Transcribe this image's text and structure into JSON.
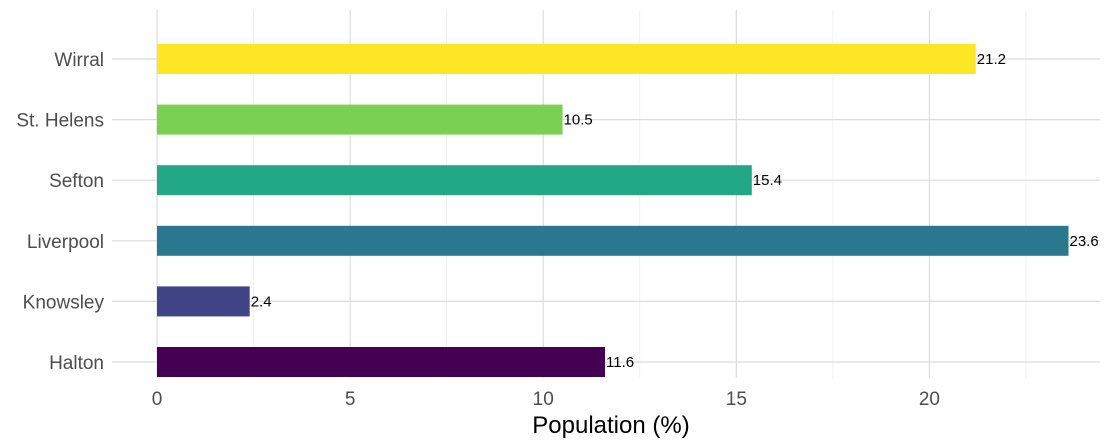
{
  "chart_data": {
    "type": "bar",
    "orientation": "horizontal",
    "categories": [
      "Halton",
      "Knowsley",
      "Liverpool",
      "Sefton",
      "St. Helens",
      "Wirral"
    ],
    "values": [
      11.6,
      2.4,
      23.6,
      15.4,
      10.5,
      21.2
    ],
    "colors": [
      "#440154",
      "#414487",
      "#2a788e",
      "#22a884",
      "#7ad151",
      "#fde725"
    ],
    "data_labels": [
      "11.6",
      "2.4",
      "23.6",
      "15.4",
      "10.5",
      "21.2"
    ],
    "xlabel": "Population (%)",
    "ylabel": "",
    "xlim": [
      0,
      24.5
    ],
    "xticks": [
      0,
      5,
      10,
      15,
      20
    ],
    "xtick_labels": [
      "0",
      "5",
      "10",
      "15",
      "20"
    ],
    "grid": true,
    "legend": "none"
  }
}
